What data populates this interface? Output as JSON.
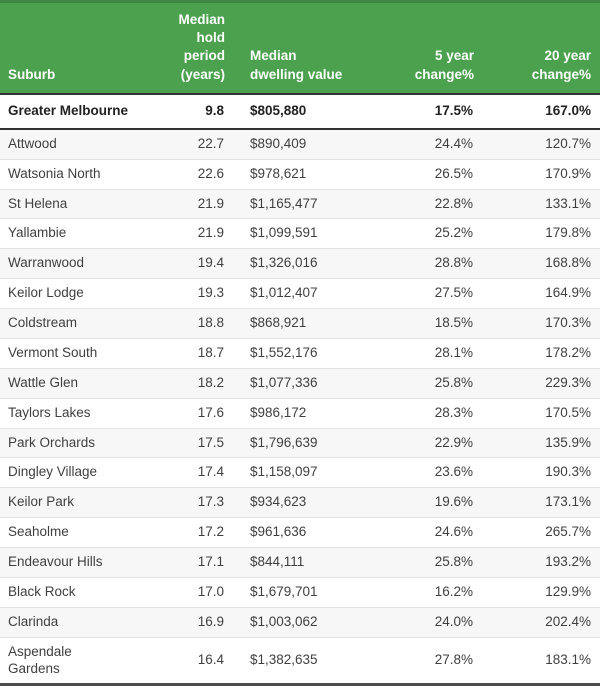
{
  "colors": {
    "header_green": "#4ba14e",
    "header_green_dark_top": "#3d8742",
    "header_text": "#ffffff",
    "summary_border": "#333333",
    "row_separator": "#e3e3e3",
    "row_stripe": "#f7f7f7",
    "body_text": "#3f3f3f",
    "bottom_rule": "#4d4d4d"
  },
  "table": {
    "headers": {
      "suburb": "Suburb",
      "hold_period": [
        "Median hold",
        "period",
        "(years)"
      ],
      "dwelling_value": [
        "Median",
        "dwelling value"
      ],
      "change_5yr": [
        "5 year",
        "change%"
      ],
      "change_20yr": [
        "20 year",
        "change%"
      ]
    },
    "summary": {
      "suburb": "Greater Melbourne",
      "hold_period": "9.8",
      "dwelling_value": "$805,880",
      "change_5yr": "17.5%",
      "change_20yr": "167.0%"
    },
    "rows": [
      {
        "suburb": "Attwood",
        "hold_period": "22.7",
        "dwelling_value": "$890,409",
        "change_5yr": "24.4%",
        "change_20yr": "120.7%"
      },
      {
        "suburb": "Watsonia North",
        "hold_period": "22.6",
        "dwelling_value": "$978,621",
        "change_5yr": "26.5%",
        "change_20yr": "170.9%"
      },
      {
        "suburb": "St Helena",
        "hold_period": "21.9",
        "dwelling_value": "$1,165,477",
        "change_5yr": "22.8%",
        "change_20yr": "133.1%"
      },
      {
        "suburb": "Yallambie",
        "hold_period": "21.9",
        "dwelling_value": "$1,099,591",
        "change_5yr": "25.2%",
        "change_20yr": "179.8%"
      },
      {
        "suburb": "Warranwood",
        "hold_period": "19.4",
        "dwelling_value": "$1,326,016",
        "change_5yr": "28.8%",
        "change_20yr": "168.8%"
      },
      {
        "suburb": "Keilor Lodge",
        "hold_period": "19.3",
        "dwelling_value": "$1,012,407",
        "change_5yr": "27.5%",
        "change_20yr": "164.9%"
      },
      {
        "suburb": "Coldstream",
        "hold_period": "18.8",
        "dwelling_value": "$868,921",
        "change_5yr": "18.5%",
        "change_20yr": "170.3%"
      },
      {
        "suburb": "Vermont South",
        "hold_period": "18.7",
        "dwelling_value": "$1,552,176",
        "change_5yr": "28.1%",
        "change_20yr": "178.2%"
      },
      {
        "suburb": "Wattle Glen",
        "hold_period": "18.2",
        "dwelling_value": "$1,077,336",
        "change_5yr": "25.8%",
        "change_20yr": "229.3%"
      },
      {
        "suburb": "Taylors Lakes",
        "hold_period": "17.6",
        "dwelling_value": "$986,172",
        "change_5yr": "28.3%",
        "change_20yr": "170.5%"
      },
      {
        "suburb": "Park Orchards",
        "hold_period": "17.5",
        "dwelling_value": "$1,796,639",
        "change_5yr": "22.9%",
        "change_20yr": "135.9%"
      },
      {
        "suburb": "Dingley Village",
        "hold_period": "17.4",
        "dwelling_value": "$1,158,097",
        "change_5yr": "23.6%",
        "change_20yr": "190.3%"
      },
      {
        "suburb": "Keilor Park",
        "hold_period": "17.3",
        "dwelling_value": "$934,623",
        "change_5yr": "19.6%",
        "change_20yr": "173.1%"
      },
      {
        "suburb": "Seaholme",
        "hold_period": "17.2",
        "dwelling_value": "$961,636",
        "change_5yr": "24.6%",
        "change_20yr": "265.7%"
      },
      {
        "suburb": "Endeavour Hills",
        "hold_period": "17.1",
        "dwelling_value": "$844,111",
        "change_5yr": "25.8%",
        "change_20yr": "193.2%"
      },
      {
        "suburb": "Black Rock",
        "hold_period": "17.0",
        "dwelling_value": "$1,679,701",
        "change_5yr": "16.2%",
        "change_20yr": "129.9%"
      },
      {
        "suburb": "Clarinda",
        "hold_period": "16.9",
        "dwelling_value": "$1,003,062",
        "change_5yr": "24.0%",
        "change_20yr": "202.4%"
      },
      {
        "suburb": "Aspendale\nGardens",
        "hold_period": "16.4",
        "dwelling_value": "$1,382,635",
        "change_5yr": "27.8%",
        "change_20yr": "183.1%"
      }
    ]
  }
}
